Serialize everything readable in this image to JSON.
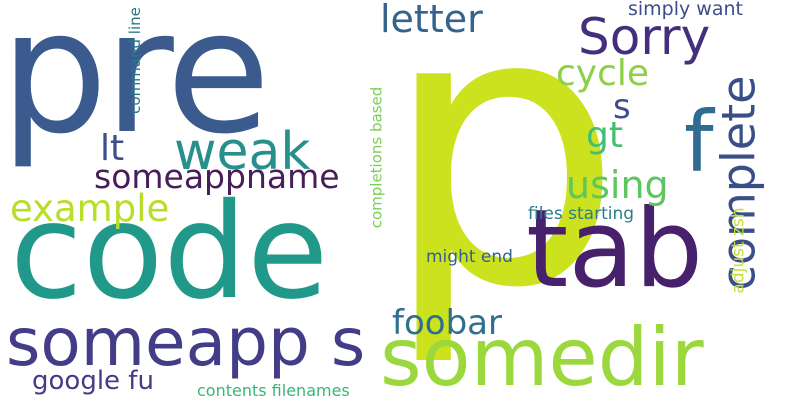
{
  "words": {
    "pre": {
      "text": "pre",
      "color": "#3b5b8f"
    },
    "p": {
      "text": "p",
      "color": "#cde21f"
    },
    "code": {
      "text": "code",
      "color": "#21998a"
    },
    "tab": {
      "text": "tab",
      "color": "#47216b"
    },
    "somedir": {
      "text": "somedir",
      "color": "#9bd83d"
    },
    "someapp_s": {
      "text": "someapp s",
      "color": "#433d87"
    },
    "complete": {
      "text": "complete",
      "color": "#3a4f87"
    },
    "sorry": {
      "text": "Sorry",
      "color": "#432f7c"
    },
    "f": {
      "text": "f",
      "color": "#2f6c8f"
    },
    "weak": {
      "text": "weak",
      "color": "#27908c"
    },
    "letter": {
      "text": "letter",
      "color": "#34638d"
    },
    "cycle": {
      "text": "cycle",
      "color": "#8cd145"
    },
    "someappname": {
      "text": "someappname",
      "color": "#471d5c"
    },
    "example": {
      "text": "example",
      "color": "#b8de29"
    },
    "lt": {
      "text": "lt",
      "color": "#3d4e8a"
    },
    "using": {
      "text": "using",
      "color": "#5fc561"
    },
    "gt": {
      "text": "gt",
      "color": "#43bf72"
    },
    "s": {
      "text": "s",
      "color": "#3d4e8a"
    },
    "foobar": {
      "text": "foobar",
      "color": "#2e6f8e"
    },
    "google_fu": {
      "text": "google fu",
      "color": "#433d87"
    },
    "simply_want": {
      "text": "simply want",
      "color": "#3e4c8a"
    },
    "command_line": {
      "text": "command line",
      "color": "#2a788e"
    },
    "completions_based": {
      "text": "completions based",
      "color": "#7bcf57"
    },
    "files_starting": {
      "text": "files starting",
      "color": "#2b7c8e"
    },
    "adjust_zsh": {
      "text": "adjust zsh",
      "color": "#c4e034"
    },
    "might_end": {
      "text": "might end",
      "color": "#355f8d"
    },
    "contents_filenames": {
      "text": "contents filenames",
      "color": "#3bb577"
    }
  }
}
